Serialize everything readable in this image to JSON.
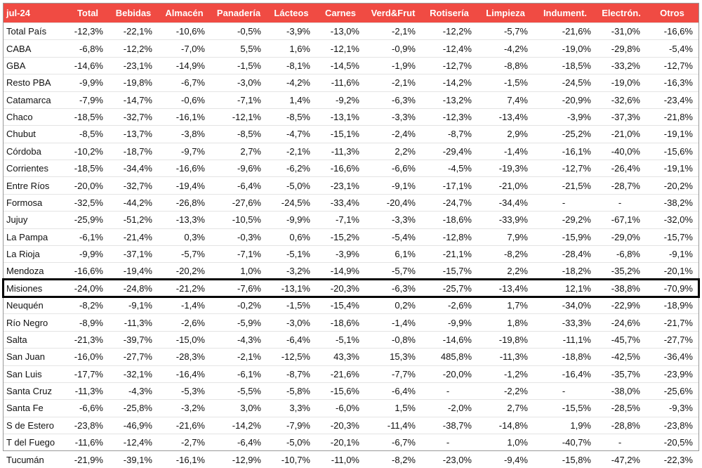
{
  "table": {
    "header": [
      "jul-24",
      "Total",
      "Bebidas",
      "Almacén",
      "Panadería",
      "Lácteos",
      "Carnes",
      "Verd&Frut",
      "Rotisería",
      "Limpieza",
      "Indument.",
      "Electrón.",
      "Otros"
    ],
    "rows": [
      [
        "Total País",
        "-12,3%",
        "-22,1%",
        "-10,6%",
        "-0,5%",
        "-3,9%",
        "-13,0%",
        "-2,1%",
        "-12,2%",
        "-5,7%",
        "-21,6%",
        "-31,0%",
        "-16,6%"
      ],
      [
        "CABA",
        "-6,8%",
        "-12,2%",
        "-7,0%",
        "5,5%",
        "1,6%",
        "-12,1%",
        "-0,9%",
        "-12,4%",
        "-4,2%",
        "-19,0%",
        "-29,8%",
        "-5,4%"
      ],
      [
        "GBA",
        "-14,6%",
        "-23,1%",
        "-14,9%",
        "-1,5%",
        "-8,1%",
        "-14,5%",
        "-1,9%",
        "-12,7%",
        "-8,8%",
        "-18,5%",
        "-33,2%",
        "-12,7%"
      ],
      [
        "Resto PBA",
        "-9,9%",
        "-19,8%",
        "-6,7%",
        "-3,0%",
        "-4,2%",
        "-11,6%",
        "-2,1%",
        "-14,2%",
        "-1,5%",
        "-24,5%",
        "-19,0%",
        "-16,3%"
      ],
      [
        "Catamarca",
        "-7,9%",
        "-14,7%",
        "-0,6%",
        "-7,1%",
        "1,4%",
        "-9,2%",
        "-6,3%",
        "-13,2%",
        "7,4%",
        "-20,9%",
        "-32,6%",
        "-23,4%"
      ],
      [
        "Chaco",
        "-18,5%",
        "-32,7%",
        "-16,1%",
        "-12,1%",
        "-8,5%",
        "-13,1%",
        "-3,3%",
        "-12,3%",
        "-13,4%",
        "-3,9%",
        "-37,3%",
        "-21,8%"
      ],
      [
        "Chubut",
        "-8,5%",
        "-13,7%",
        "-3,8%",
        "-8,5%",
        "-4,7%",
        "-15,1%",
        "-2,4%",
        "-8,7%",
        "2,9%",
        "-25,2%",
        "-21,0%",
        "-19,1%"
      ],
      [
        "Córdoba",
        "-10,2%",
        "-18,7%",
        "-9,7%",
        "2,7%",
        "-2,1%",
        "-11,3%",
        "2,2%",
        "-29,4%",
        "-1,4%",
        "-16,1%",
        "-40,0%",
        "-15,6%"
      ],
      [
        "Corrientes",
        "-18,5%",
        "-34,4%",
        "-16,6%",
        "-9,6%",
        "-6,2%",
        "-16,6%",
        "-6,6%",
        "-4,5%",
        "-19,3%",
        "-12,7%",
        "-26,4%",
        "-19,1%"
      ],
      [
        "Entre Ríos",
        "-20,0%",
        "-32,7%",
        "-19,4%",
        "-6,4%",
        "-5,0%",
        "-23,1%",
        "-9,1%",
        "-17,1%",
        "-21,0%",
        "-21,5%",
        "-28,7%",
        "-20,2%"
      ],
      [
        "Formosa",
        "-32,5%",
        "-44,2%",
        "-26,8%",
        "-27,6%",
        "-24,5%",
        "-33,4%",
        "-20,4%",
        "-24,7%",
        "-34,4%",
        "-",
        "-",
        "-38,2%"
      ],
      [
        "Jujuy",
        "-25,9%",
        "-51,2%",
        "-13,3%",
        "-10,5%",
        "-9,9%",
        "-7,1%",
        "-3,3%",
        "-18,6%",
        "-33,9%",
        "-29,2%",
        "-67,1%",
        "-32,0%"
      ],
      [
        "La Pampa",
        "-6,1%",
        "-21,4%",
        "0,3%",
        "-0,3%",
        "0,6%",
        "-15,2%",
        "-5,4%",
        "-12,8%",
        "7,9%",
        "-15,9%",
        "-29,0%",
        "-15,7%"
      ],
      [
        "La Rioja",
        "-9,9%",
        "-37,1%",
        "-5,7%",
        "-7,1%",
        "-5,1%",
        "-3,9%",
        "6,1%",
        "-21,1%",
        "-8,2%",
        "-28,4%",
        "-6,8%",
        "-9,1%"
      ],
      [
        "Mendoza",
        "-16,6%",
        "-19,4%",
        "-20,2%",
        "1,0%",
        "-3,2%",
        "-14,9%",
        "-5,7%",
        "-15,7%",
        "2,2%",
        "-18,2%",
        "-35,2%",
        "-20,1%"
      ],
      [
        "Misiones",
        "-24,0%",
        "-24,8%",
        "-21,2%",
        "-7,6%",
        "-13,1%",
        "-20,3%",
        "-6,3%",
        "-25,7%",
        "-13,4%",
        "12,1%",
        "-38,8%",
        "-70,9%"
      ],
      [
        "Neuquén",
        "-8,2%",
        "-9,1%",
        "-1,4%",
        "-0,2%",
        "-1,5%",
        "-15,4%",
        "0,2%",
        "-2,6%",
        "1,7%",
        "-34,0%",
        "-22,9%",
        "-18,9%"
      ],
      [
        "Río Negro",
        "-8,9%",
        "-11,3%",
        "-2,6%",
        "-5,9%",
        "-3,0%",
        "-18,6%",
        "-1,4%",
        "-9,9%",
        "1,8%",
        "-33,3%",
        "-24,6%",
        "-21,7%"
      ],
      [
        "Salta",
        "-21,3%",
        "-39,7%",
        "-15,0%",
        "-4,3%",
        "-6,4%",
        "-5,1%",
        "-0,8%",
        "-14,6%",
        "-19,8%",
        "-11,1%",
        "-45,7%",
        "-27,7%"
      ],
      [
        "San Juan",
        "-16,0%",
        "-27,7%",
        "-28,3%",
        "-2,1%",
        "-12,5%",
        "43,3%",
        "15,3%",
        "485,8%",
        "-11,3%",
        "-18,8%",
        "-42,5%",
        "-36,4%"
      ],
      [
        "San Luis",
        "-17,7%",
        "-32,1%",
        "-16,4%",
        "-6,1%",
        "-8,7%",
        "-21,6%",
        "-7,7%",
        "-20,0%",
        "-1,2%",
        "-16,4%",
        "-35,7%",
        "-23,9%"
      ],
      [
        "Santa Cruz",
        "-11,3%",
        "-4,3%",
        "-5,3%",
        "-5,5%",
        "-5,8%",
        "-15,6%",
        "-6,4%",
        "-",
        "-2,2%",
        "-",
        "-38,0%",
        "-25,6%"
      ],
      [
        "Santa Fe",
        "-6,6%",
        "-25,8%",
        "-3,2%",
        "3,0%",
        "3,3%",
        "-6,0%",
        "1,5%",
        "-2,0%",
        "2,7%",
        "-15,5%",
        "-28,5%",
        "-9,3%"
      ],
      [
        "S de Estero",
        "-23,8%",
        "-46,9%",
        "-21,6%",
        "-14,2%",
        "-7,9%",
        "-20,3%",
        "-11,4%",
        "-38,7%",
        "-14,8%",
        "1,9%",
        "-28,8%",
        "-23,8%"
      ],
      [
        "T del Fuego",
        "-11,6%",
        "-12,4%",
        "-2,7%",
        "-6,4%",
        "-5,0%",
        "-20,1%",
        "-6,7%",
        "-",
        "1,0%",
        "-40,7%",
        "-",
        "-20,5%"
      ],
      [
        "Tucumán",
        "-21,9%",
        "-39,1%",
        "-16,1%",
        "-12,9%",
        "-10,7%",
        "-11,0%",
        "-8,2%",
        "-23,0%",
        "-9,4%",
        "-15,8%",
        "-47,2%",
        "-22,3%"
      ]
    ]
  }
}
